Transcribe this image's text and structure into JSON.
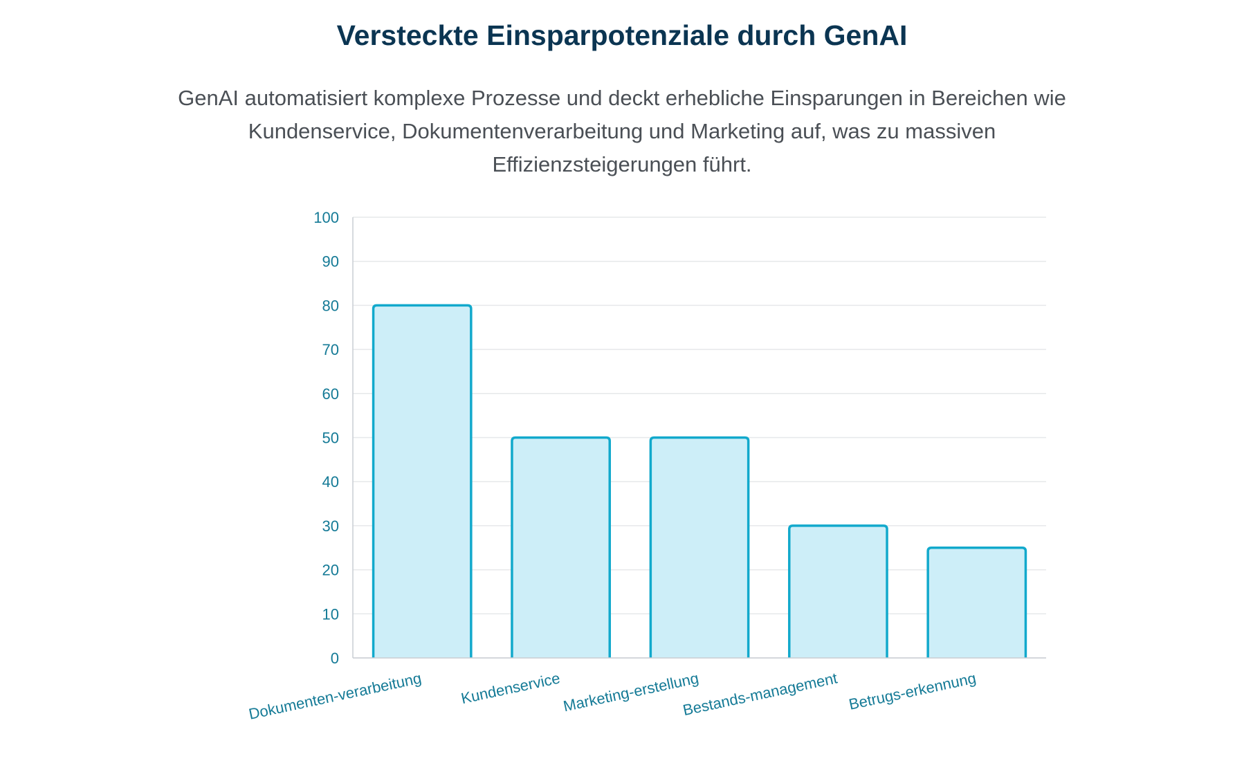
{
  "header": {
    "title": "Versteckte Einsparpotenziale durch GenAI",
    "subtitle": "GenAI automatisiert komplexe Prozesse und deckt erhebliche Einsparungen in Bereichen wie Kundenservice, Dokumentenverarbeitung und Marketing auf, was zu massiven Effizienzsteigerungen führt."
  },
  "chart_data": {
    "type": "bar",
    "categories": [
      "Dokumenten-verarbeitung",
      "Kundenservice",
      "Marketing-erstellung",
      "Bestands-management",
      "Betrugs-erkennung"
    ],
    "values": [
      80,
      50,
      50,
      30,
      25
    ],
    "ylim": [
      0,
      100
    ],
    "yticks": [
      0,
      10,
      20,
      30,
      40,
      50,
      60,
      70,
      80,
      90,
      100
    ],
    "grid": true,
    "colors": {
      "bar_fill": "#cdeef8",
      "bar_stroke": "#12a9cc",
      "tick_label": "#147a96",
      "grid": "#e6e8ea",
      "axis": "#c9ced3"
    }
  }
}
